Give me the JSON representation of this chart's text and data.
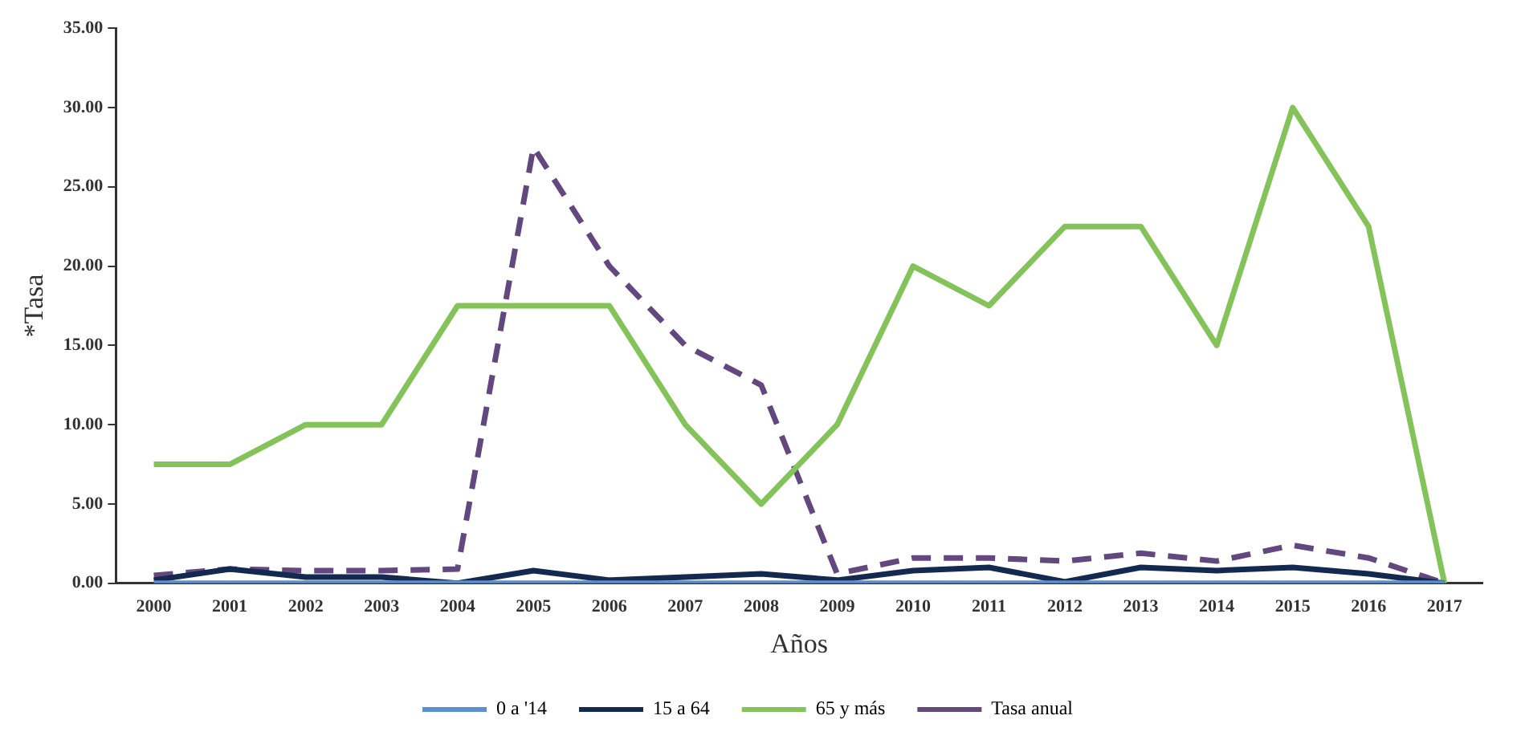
{
  "chart_data": {
    "type": "line",
    "xlabel": "Años",
    "ylabel": "*Tasa",
    "categories": [
      "2000",
      "2001",
      "2002",
      "2003",
      "2004",
      "2005",
      "2006",
      "2007",
      "2008",
      "2009",
      "2010",
      "2011",
      "2012",
      "2013",
      "2014",
      "2015",
      "2016",
      "2017"
    ],
    "ylim": [
      0,
      35
    ],
    "yticks": [
      {
        "value": 0,
        "label": "0.00"
      },
      {
        "value": 5,
        "label": "5.00"
      },
      {
        "value": 10,
        "label": "10.00"
      },
      {
        "value": 15,
        "label": "15.00"
      },
      {
        "value": 20,
        "label": "20.00"
      },
      {
        "value": 25,
        "label": "25.00"
      },
      {
        "value": 30,
        "label": "30.00"
      },
      {
        "value": 35,
        "label": "35.00"
      }
    ],
    "grid": false,
    "legend": "bottom",
    "marker": "none",
    "series": [
      {
        "name": "0 a '14",
        "color": "#5b8fd0",
        "values": [
          0,
          0,
          0,
          0,
          0,
          0,
          0,
          0,
          0,
          0,
          0,
          0,
          0,
          0,
          0,
          0,
          0,
          0
        ]
      },
      {
        "name": "15 a 64",
        "color": "#14294f",
        "values": [
          0.2,
          0.9,
          0.4,
          0.4,
          0,
          0.8,
          0.2,
          0.4,
          0.6,
          0.2,
          0.8,
          1.0,
          0.1,
          1.0,
          0.8,
          1.0,
          0.6,
          0
        ]
      },
      {
        "name": "65 y más",
        "color": "#84c25a",
        "values": [
          7.5,
          7.5,
          10,
          10,
          17.5,
          17.5,
          17.5,
          10,
          5,
          10,
          20,
          17.5,
          22.5,
          22.5,
          15,
          30,
          22.5,
          0
        ]
      },
      {
        "name": "Tasa anual",
        "color": "#62487e",
        "line_style": "dashed",
        "values": [
          0.5,
          0.9,
          0.8,
          0.8,
          0.9,
          27.5,
          20,
          15,
          12.5,
          0.6,
          1.6,
          1.6,
          1.4,
          1.9,
          1.4,
          2.4,
          1.6,
          0
        ]
      }
    ]
  }
}
